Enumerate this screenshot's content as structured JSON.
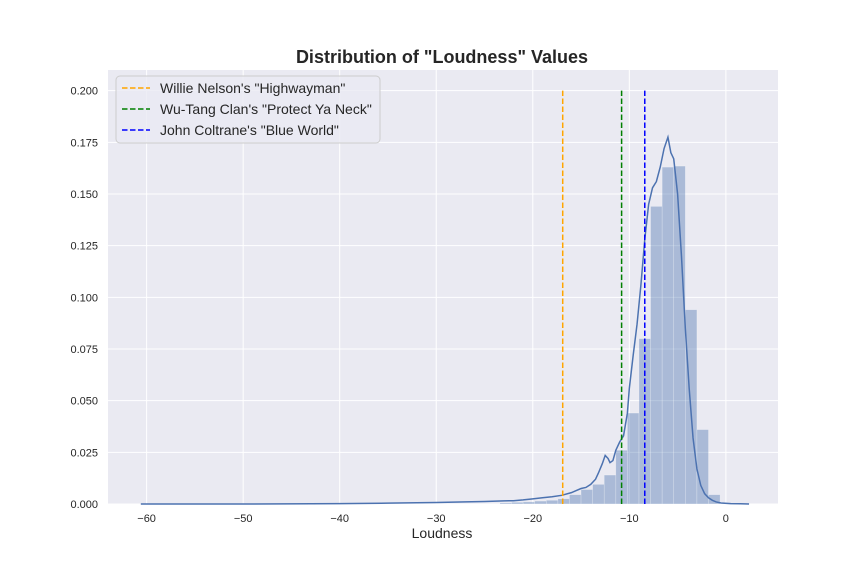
{
  "chart_data": {
    "type": "histogram",
    "title": "Distribution of \"Loudness\" Values",
    "xlabel": "Loudness",
    "ylabel": "",
    "xlim": [
      -64,
      5.4
    ],
    "ylim": [
      0,
      0.21
    ],
    "xticks": [
      -60,
      -50,
      -40,
      -30,
      -20,
      -10,
      0
    ],
    "yticks": [
      0.0,
      0.025,
      0.05,
      0.075,
      0.1,
      0.125,
      0.15,
      0.175,
      0.2
    ],
    "xtick_labels": [
      "−60",
      "−50",
      "−40",
      "−30",
      "−20",
      "−10",
      "0"
    ],
    "ytick_labels": [
      "0.000",
      "0.025",
      "0.050",
      "0.075",
      "0.100",
      "0.125",
      "0.150",
      "0.175",
      "0.200"
    ],
    "grid": true,
    "legend_position": "top-left",
    "colors": {
      "background": "#EAEAF2",
      "grid": "#FFFFFF",
      "bar": "#4C72B0",
      "kde": "#4C72B0"
    },
    "histogram": {
      "bin_edges": [
        -23.4,
        -22.2,
        -21.0,
        -19.8,
        -18.6,
        -17.4,
        -16.2,
        -15.0,
        -13.8,
        -12.6,
        -11.4,
        -10.2,
        -9.0,
        -7.8,
        -6.6,
        -5.4,
        -4.2,
        -3.0,
        -1.8,
        -0.6
      ],
      "densities": [
        0.0005,
        0.0008,
        0.001,
        0.0014,
        0.0018,
        0.0025,
        0.0045,
        0.007,
        0.0095,
        0.014,
        0.026,
        0.044,
        0.08,
        0.144,
        0.163,
        0.1635,
        0.094,
        0.036,
        0.0045
      ]
    },
    "kde": {
      "x": [
        -60.6,
        -50,
        -40,
        -35,
        -30,
        -27,
        -25,
        -23,
        -22,
        -21,
        -20,
        -19,
        -18,
        -17,
        -16,
        -15.5,
        -15,
        -14.5,
        -14,
        -13.5,
        -13.2,
        -12.8,
        -12.5,
        -12.2,
        -12.0,
        -11.7,
        -11.4,
        -11.0,
        -10.6,
        -10.2,
        -10.0,
        -9.6,
        -9.2,
        -8.8,
        -8.4,
        -8.0,
        -7.6,
        -7.2,
        -6.8,
        -6.4,
        -6.0,
        -5.7,
        -5.4,
        -5.0,
        -4.6,
        -4.2,
        -3.8,
        -3.4,
        -3.0,
        -2.6,
        -2.2,
        -1.8,
        -1.4,
        -1.0,
        -0.5,
        0.5,
        1.5,
        2.4
      ],
      "y": [
        0.0,
        0.0,
        0.0002,
        0.0004,
        0.0007,
        0.001,
        0.0012,
        0.0015,
        0.0016,
        0.002,
        0.0025,
        0.003,
        0.0035,
        0.0042,
        0.0055,
        0.0065,
        0.0075,
        0.008,
        0.0095,
        0.012,
        0.015,
        0.0195,
        0.0235,
        0.022,
        0.02,
        0.021,
        0.026,
        0.03,
        0.033,
        0.044,
        0.056,
        0.072,
        0.087,
        0.106,
        0.128,
        0.145,
        0.153,
        0.156,
        0.163,
        0.172,
        0.1775,
        0.17,
        0.167,
        0.15,
        0.12,
        0.085,
        0.056,
        0.032,
        0.017,
        0.009,
        0.005,
        0.003,
        0.0018,
        0.001,
        0.0005,
        0.0002,
        0.0001,
        0.0
      ]
    },
    "reference_lines": [
      {
        "label": "Willie Nelson's \"Highwayman\"",
        "x": -16.9,
        "color": "orange"
      },
      {
        "label": "Wu-Tang Clan's \"Protect Ya Neck\"",
        "x": -10.8,
        "color": "green"
      },
      {
        "label": "John Coltrane's \"Blue World\"",
        "x": -8.4,
        "color": "blue"
      }
    ]
  }
}
